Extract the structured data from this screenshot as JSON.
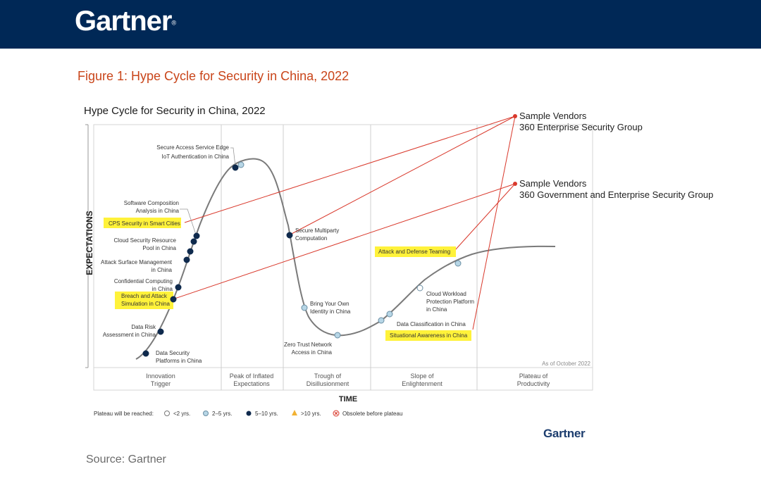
{
  "header": {
    "brand": "Gartner",
    "brand_mark": "®"
  },
  "figure_title": "Figure 1: Hype Cycle for Security in China, 2022",
  "source": "Source: Gartner",
  "footer_brand": "Gartner",
  "colors": {
    "header_bg": "#002856",
    "figure_title": "#c9451a",
    "callout_line": "#d9382b",
    "highlight": "#fff23a",
    "dot_5_10": "#0f2a4d",
    "dot_2_5": "#b7d6e6",
    "dot_lt2": "#ffffff"
  },
  "callouts": [
    {
      "title": "Sample Vendors",
      "vendor": "360 Enterprise Security Group"
    },
    {
      "title": "Sample Vendors",
      "vendor": "360 Government and Enterprise Security Group"
    }
  ],
  "chart_data": {
    "type": "hype-cycle",
    "title": "Hype Cycle for Security in China, 2022",
    "xlabel": "TIME",
    "ylabel": "EXPECTATIONS",
    "as_of": "As of October 2022",
    "phases": [
      {
        "line1": "Innovation",
        "line2": "Trigger"
      },
      {
        "line1": "Peak of Inflated",
        "line2": "Expectations"
      },
      {
        "line1": "Trough of",
        "line2": "Disillusionment"
      },
      {
        "line1": "Slope of",
        "line2": "Enlightenment"
      },
      {
        "line1": "Plateau of",
        "line2": "Productivity"
      }
    ],
    "legend": {
      "title": "Plateau will be reached:",
      "items": [
        {
          "label": "<2 yrs.",
          "symbol": "open-circle"
        },
        {
          "label": "2–5 yrs.",
          "symbol": "light-blue-circle"
        },
        {
          "label": "5–10 yrs.",
          "symbol": "dark-blue-circle"
        },
        {
          "label": ">10 yrs.",
          "symbol": "triangle"
        },
        {
          "label": "Obsolete before plateau",
          "symbol": "cross-circle"
        }
      ]
    },
    "technologies": [
      {
        "lines": [
          "Data Security",
          "Platforms in China"
        ],
        "phase": "Innovation Trigger",
        "plateau": "5–10 yrs.",
        "highlighted": false
      },
      {
        "lines": [
          "Data Risk",
          "Assessment in China"
        ],
        "phase": "Innovation Trigger",
        "plateau": "5–10 yrs.",
        "highlighted": false
      },
      {
        "lines": [
          "Breach and Attack",
          "Simulation in China"
        ],
        "phase": "Innovation Trigger",
        "plateau": "5–10 yrs.",
        "highlighted": true
      },
      {
        "lines": [
          "Confidential Computing",
          "in China"
        ],
        "phase": "Innovation Trigger",
        "plateau": "5–10 yrs.",
        "highlighted": false
      },
      {
        "lines": [
          "Attack Surface Management",
          "in China"
        ],
        "phase": "Innovation Trigger",
        "plateau": "5–10 yrs.",
        "highlighted": false
      },
      {
        "lines": [
          "Cloud Security Resource",
          "Pool in China"
        ],
        "phase": "Innovation Trigger",
        "plateau": "5–10 yrs.",
        "highlighted": false
      },
      {
        "lines": [
          "CPS Security in Smart Cities"
        ],
        "phase": "Innovation Trigger",
        "plateau": "5–10 yrs.",
        "highlighted": true
      },
      {
        "lines": [
          "Software Composition",
          "Analysis in China"
        ],
        "phase": "Innovation Trigger",
        "plateau": "5–10 yrs.",
        "highlighted": false
      },
      {
        "lines": [
          "Secure Access Service Edge"
        ],
        "phase": "Peak of Inflated Expectations",
        "plateau": "5–10 yrs.",
        "highlighted": false
      },
      {
        "lines": [
          "IoT Authentication in China"
        ],
        "phase": "Peak of Inflated Expectations",
        "plateau": "2–5 yrs.",
        "highlighted": false
      },
      {
        "lines": [
          "Secure Multiparty",
          "Computation"
        ],
        "phase": "Peak of Inflated Expectations",
        "plateau": "5–10 yrs.",
        "highlighted": false
      },
      {
        "lines": [
          "Bring Your Own",
          "Identity in China"
        ],
        "phase": "Trough of Disillusionment",
        "plateau": "2–5 yrs.",
        "highlighted": false
      },
      {
        "lines": [
          "Zero Trust Network",
          "Access in China"
        ],
        "phase": "Trough of Disillusionment",
        "plateau": "2–5 yrs.",
        "highlighted": false
      },
      {
        "lines": [
          "Situational Awareness in China"
        ],
        "phase": "Slope of Enlightenment",
        "plateau": "2–5 yrs.",
        "highlighted": true
      },
      {
        "lines": [
          "Data Classification in China"
        ],
        "phase": "Slope of Enlightenment",
        "plateau": "2–5 yrs.",
        "highlighted": false
      },
      {
        "lines": [
          "Cloud Workload",
          "Protection Platform",
          "in China"
        ],
        "phase": "Slope of Enlightenment",
        "plateau": "<2 yrs.",
        "highlighted": false
      },
      {
        "lines": [
          "Attack and Defense Teaming"
        ],
        "phase": "Slope of Enlightenment",
        "plateau": "2–5 yrs.",
        "highlighted": true
      }
    ]
  }
}
